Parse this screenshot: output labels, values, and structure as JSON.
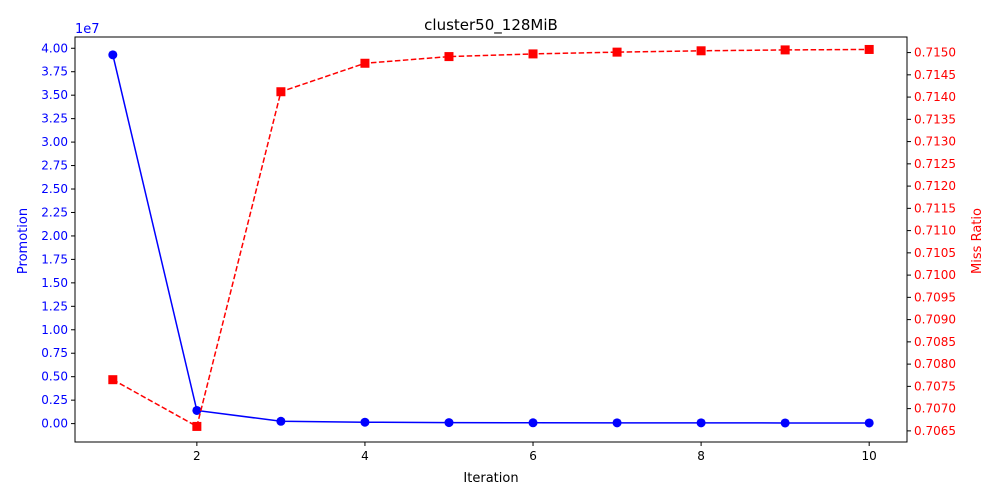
{
  "chart_data": {
    "type": "line",
    "title": "cluster50_128MiB",
    "xlabel": "Iteration",
    "ylabel_left": "Promotion",
    "ylabel_right": "Miss Ratio",
    "left_offset_label": "1e7",
    "x": [
      1,
      2,
      3,
      4,
      5,
      6,
      7,
      8,
      9,
      10
    ],
    "xlim": [
      0.55,
      10.45
    ],
    "xticks": [
      2,
      4,
      6,
      8,
      10
    ],
    "xtick_labels": [
      "2",
      "4",
      "6",
      "8",
      "10"
    ],
    "ylim_left": [
      -0.196,
      4.12
    ],
    "yticks_left": [
      0.0,
      0.25,
      0.5,
      0.75,
      1.0,
      1.25,
      1.5,
      1.75,
      2.0,
      2.25,
      2.5,
      2.75,
      3.0,
      3.25,
      3.5,
      3.75,
      4.0
    ],
    "yticks_left_labels": [
      "0.00",
      "0.25",
      "0.50",
      "0.75",
      "1.00",
      "1.25",
      "1.50",
      "1.75",
      "2.00",
      "2.25",
      "2.50",
      "2.75",
      "3.00",
      "3.25",
      "3.50",
      "3.75",
      "4.00"
    ],
    "ylim_right": [
      0.70625,
      0.71535
    ],
    "yticks_right": [
      0.7065,
      0.707,
      0.7075,
      0.708,
      0.7085,
      0.709,
      0.7095,
      0.71,
      0.7105,
      0.711,
      0.7115,
      0.712,
      0.7125,
      0.713,
      0.7135,
      0.714,
      0.7145,
      0.715
    ],
    "yticks_right_labels": [
      "0.7065",
      "0.7070",
      "0.7075",
      "0.7080",
      "0.7085",
      "0.7090",
      "0.7095",
      "0.7100",
      "0.7105",
      "0.7110",
      "0.7115",
      "0.7120",
      "0.7125",
      "0.7130",
      "0.7135",
      "0.7140",
      "0.7145",
      "0.7150"
    ],
    "grid": false,
    "series": [
      {
        "axis": "left",
        "color": "#0000ff",
        "line_style": "solid",
        "marker": "circle",
        "values": [
          3.93,
          0.14,
          0.025,
          0.015,
          0.011,
          0.009,
          0.008,
          0.008,
          0.007,
          0.007
        ]
      },
      {
        "axis": "right",
        "color": "#ff0000",
        "line_style": "dashed",
        "marker": "square",
        "values": [
          0.70765,
          0.7066,
          0.71412,
          0.71476,
          0.71491,
          0.71497,
          0.71501,
          0.71504,
          0.71506,
          0.71507
        ]
      }
    ]
  }
}
